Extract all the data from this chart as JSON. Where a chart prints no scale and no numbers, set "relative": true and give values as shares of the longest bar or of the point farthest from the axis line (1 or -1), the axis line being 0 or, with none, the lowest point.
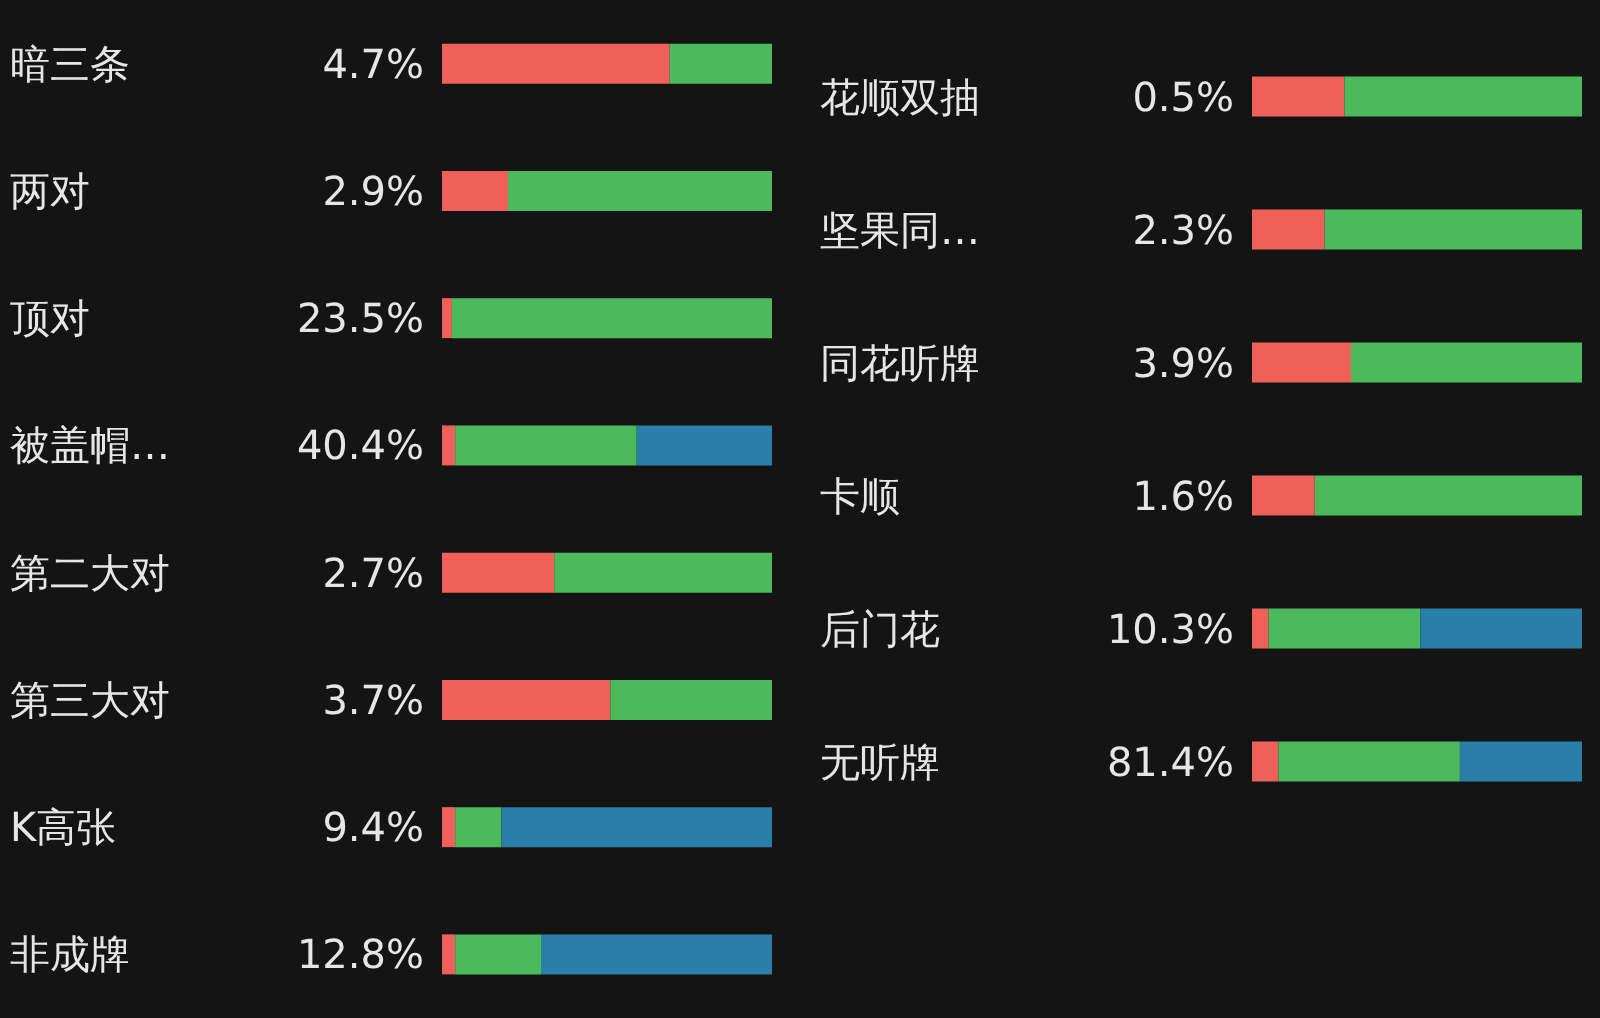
{
  "chart_data": [
    {
      "type": "bar",
      "orientation": "horizontal",
      "stacked": true,
      "relative": true,
      "categories": [
        "暗三条",
        "两对",
        "顶对",
        "被盖帽…",
        "第二大对",
        "第三大对",
        "K高张",
        "非成牌"
      ],
      "series": [
        {
          "color": "#f0605a",
          "values": [
            0.69,
            0.2,
            0.03,
            0.04,
            0.34,
            0.51,
            0.04,
            0.04
          ]
        },
        {
          "color": "#4cba5c",
          "values": [
            0.31,
            0.8,
            0.97,
            0.55,
            0.66,
            0.49,
            0.14,
            0.26
          ]
        },
        {
          "color": "#2a7fa8",
          "values": [
            null,
            null,
            null,
            0.41,
            null,
            null,
            0.82,
            0.7
          ]
        }
      ],
      "annotations": [
        "4.7%",
        "2.9%",
        "23.5%",
        "40.4%",
        "2.7%",
        "3.7%",
        "9.4%",
        "12.8%"
      ]
    },
    {
      "type": "bar",
      "orientation": "horizontal",
      "stacked": true,
      "relative": true,
      "categories": [
        "花顺双抽",
        "坚果同…",
        "同花听牌",
        "卡顺",
        "后门花",
        "无听牌"
      ],
      "series": [
        {
          "color": "#f0605a",
          "values": [
            0.28,
            0.22,
            0.3,
            0.19,
            0.05,
            0.08
          ]
        },
        {
          "color": "#4cba5c",
          "values": [
            0.72,
            0.78,
            0.7,
            0.81,
            0.46,
            0.55
          ]
        },
        {
          "color": "#2a7fa8",
          "values": [
            null,
            null,
            null,
            null,
            0.49,
            0.37
          ]
        }
      ],
      "annotations": [
        "0.5%",
        "2.3%",
        "3.9%",
        "1.6%",
        "10.3%",
        "81.4%"
      ]
    }
  ]
}
